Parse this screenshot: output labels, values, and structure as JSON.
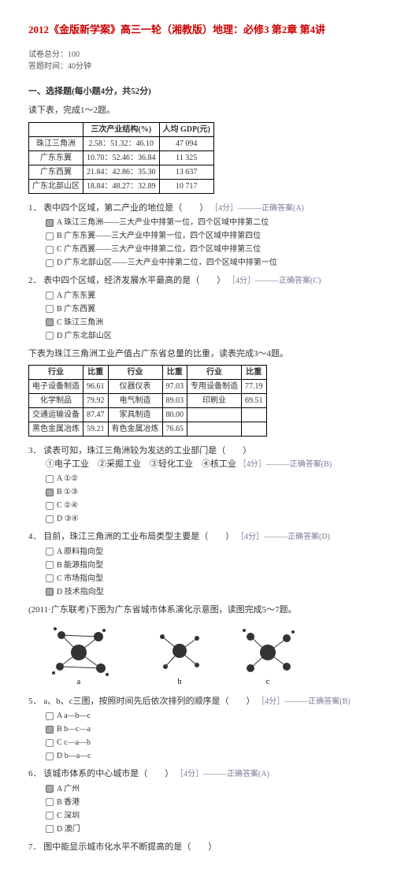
{
  "header": {
    "title": "2012《金版新学案》高三一轮（湘教版）地理：必修3 第2章 第4讲",
    "meta1": "试卷总分：100",
    "meta2": "答题时间：40分钟"
  },
  "section1": "一、选择题(每小题4分，共52分)",
  "pre1": "读下表，完成1～2题。",
  "table1": {
    "headers": [
      "",
      "三次产业结构(%)",
      "人均 GDP(元)"
    ],
    "rows": [
      [
        "珠江三角洲",
        "2.58：51.32：46.10",
        "47 094"
      ],
      [
        "广东东翼",
        "10.70：52.46：36.84",
        "11 325"
      ],
      [
        "广东西翼",
        "21.84：42.86：35.30",
        "13 637"
      ],
      [
        "广东北部山区",
        "18.84：48.27：32.89",
        "10 717"
      ]
    ]
  },
  "q1": {
    "num": "1．",
    "text": "表中四个区域，第二产业的地位是（　　）",
    "tag": "［4分］———正确答案(A)",
    "opts": [
      {
        "k": "A",
        "t": "珠江三角洲——三大产业中排第一位，四个区域中排第二位",
        "sel": true
      },
      {
        "k": "B",
        "t": "广东东翼——三大产业中排第一位，四个区域中排第四位"
      },
      {
        "k": "C",
        "t": "广东西翼——三大产业中排第二位，四个区域中排第三位"
      },
      {
        "k": "D",
        "t": "广东北部山区——三大产业中排第二位，四个区域中排第一位"
      }
    ]
  },
  "q2": {
    "num": "2．",
    "text": "表中四个区域，经济发展水平最高的是（　　）",
    "tag": "［4分］———正确答案(C)",
    "opts": [
      {
        "k": "A",
        "t": "广东东翼"
      },
      {
        "k": "B",
        "t": "广东西翼"
      },
      {
        "k": "C",
        "t": "珠江三角洲",
        "sel": true
      },
      {
        "k": "D",
        "t": "广东北部山区"
      }
    ]
  },
  "pre2": "下表为珠江三角洲工业产值占广东省总量的比重，读表完成3～4题。",
  "table2": {
    "headers": [
      "行业",
      "比重",
      "行业",
      "比重",
      "行业",
      "比重"
    ],
    "rows": [
      [
        "电子设备制造",
        "96.61",
        "仪器仪表",
        "97.03",
        "专用设备制造",
        "77.19"
      ],
      [
        "化学制品",
        "79.92",
        "电气制造",
        "89.03",
        "印刷业",
        "69.51"
      ],
      [
        "交通运输设备",
        "87.47",
        "家具制造",
        "80.00",
        "",
        ""
      ],
      [
        "黑色金属冶炼",
        "59.21",
        "有色金属冶炼",
        "76.65",
        "",
        ""
      ]
    ]
  },
  "q3": {
    "num": "3．",
    "text": "读表可知，珠江三角洲较为发达的工业部门是（　　）",
    "line2": "①电子工业　②采掘工业　③轻化工业　④核工业",
    "tag": "［4分］———正确答案(B)",
    "opts": [
      {
        "k": "A",
        "t": "①②"
      },
      {
        "k": "B",
        "t": "①③",
        "sel": true
      },
      {
        "k": "C",
        "t": "②④"
      },
      {
        "k": "D",
        "t": "③④"
      }
    ]
  },
  "q4": {
    "num": "4．",
    "text": "目前，珠江三角洲的工业布局类型主要是（　　）",
    "tag": "［4分］———正确答案(D)",
    "opts": [
      {
        "k": "A",
        "t": "原料指向型"
      },
      {
        "k": "B",
        "t": "能源指向型"
      },
      {
        "k": "C",
        "t": "市场指向型"
      },
      {
        "k": "D",
        "t": "技术指向型",
        "sel": true
      }
    ]
  },
  "pre3": "(2011·广东联考)下图为广东省城市体系演化示意图，读图完成5～7题。",
  "diagrams": {
    "labels": [
      "a",
      "b",
      "c"
    ],
    "node_fill": "#333",
    "edge": "#333"
  },
  "q5": {
    "num": "5．",
    "text": "a、b、c三图，按照时间先后依次排列的顺序是（　　）",
    "tag": "［4分］———正确答案(B)",
    "opts": [
      {
        "k": "A",
        "t": "a—b—c"
      },
      {
        "k": "B",
        "t": "b—c—a",
        "sel": true
      },
      {
        "k": "C",
        "t": "c—a—b"
      },
      {
        "k": "D",
        "t": "b—a—c"
      }
    ]
  },
  "q6": {
    "num": "6．",
    "text": "该城市体系的中心城市是（　　）",
    "tag": "［4分］———正确答案(A)",
    "opts": [
      {
        "k": "A",
        "t": "广州",
        "sel": true
      },
      {
        "k": "B",
        "t": "香港"
      },
      {
        "k": "C",
        "t": "深圳"
      },
      {
        "k": "D",
        "t": "澳门"
      }
    ]
  },
  "q7": {
    "num": "7．",
    "text": "图中能显示城市化水平不断提高的是（　　）"
  }
}
